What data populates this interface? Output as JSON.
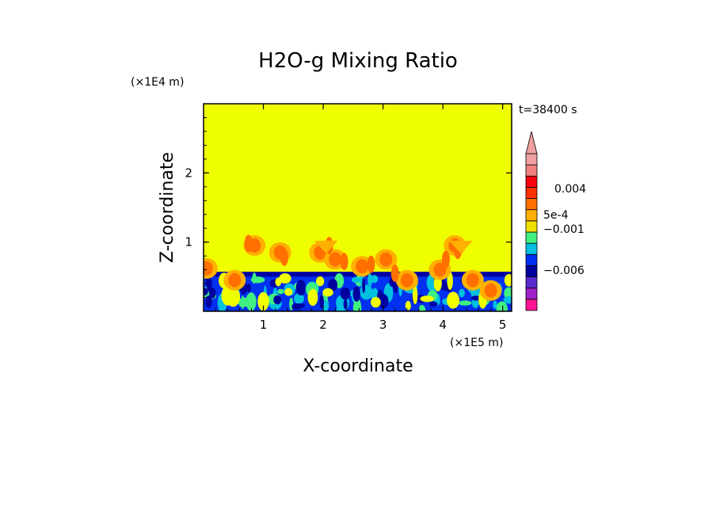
{
  "chart_data": {
    "type": "heatmap",
    "title": "H2O-g Mixing Ratio",
    "xlabel": "X-coordinate",
    "ylabel": "Z-coordinate",
    "x_scale_label": "(×1E5 m)",
    "y_scale_label": "(×1E4 m)",
    "time_label": "t=38400 s",
    "xlim": [
      0,
      5.15
    ],
    "ylim": [
      0,
      3.0
    ],
    "x_ticks": [
      "1",
      "2",
      "3",
      "4",
      "5"
    ],
    "y_ticks": [
      "1",
      "2"
    ],
    "colorbar": {
      "labels": [
        "0.004",
        "5e-4",
        "−0.001",
        "−0.006"
      ],
      "colors": [
        "#ff1493",
        "#a020c8",
        "#5a2ad0",
        "#0000a0",
        "#0030f0",
        "#00c0e0",
        "#40f080",
        "#f0e000",
        "#ffb000",
        "#ff7000",
        "#ff3000",
        "#ff0010",
        "#f08080",
        "#f0a0a0"
      ],
      "extend_top": true
    },
    "background_color": "#f0ff00"
  }
}
